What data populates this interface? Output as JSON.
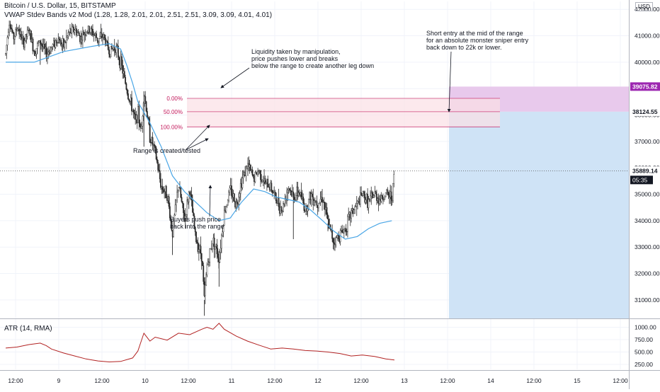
{
  "header": {
    "symbol": "Bitcoin / U.S. Dollar, 15, BITSTAMP",
    "indicator": "VWAP Stdev Bands v2 Mod (1.28, 1.28, 2.01, 2.01, 2.51, 2.51, 3.09, 3.09, 4.01, 4.01)",
    "atr": "ATR (14, RMA)",
    "currency": "USD"
  },
  "colors": {
    "candle": "#2b2b2b",
    "vwap": "#4aa6e6",
    "atr": "#b22222",
    "range_fill": "#fbe0e6",
    "range_line": "#c2185b",
    "short_risk_fill": "#e8c9ec",
    "short_reward_fill": "#cfe3f6",
    "last_price_tag": "#131722",
    "top_tag": "#9c27b0"
  },
  "chart_data": [
    {
      "type": "candlestick",
      "title": "Bitcoin / U.S. Dollar, 15, BITSTAMP",
      "ylim": [
        30300,
        42300
      ],
      "yticks": [
        31000,
        32000,
        33000,
        34000,
        35000,
        36000,
        37000,
        38000,
        39000,
        40000,
        41000,
        42000
      ],
      "ytick_labels": [
        "31000.00",
        "32000.00",
        "33000.00",
        "34000.00",
        "35000.00",
        "36000.00",
        "37000.00",
        "38000.00",
        "39000.00",
        "40000.00",
        "41000.00",
        "42000.00"
      ],
      "x_ticks": [
        "12:00",
        "9",
        "12:00",
        "10",
        "12:00",
        "11",
        "12:00",
        "12",
        "12:00",
        "13",
        "12:00",
        "14",
        "12:00",
        "15",
        "12:00"
      ],
      "price_path": [
        [
          0,
          40300
        ],
        [
          0.04,
          41600
        ],
        [
          0.09,
          40900
        ],
        [
          0.14,
          41350
        ],
        [
          0.2,
          40700
        ],
        [
          0.27,
          41200
        ],
        [
          0.33,
          40400
        ],
        [
          0.4,
          40800
        ],
        [
          0.47,
          40300
        ],
        [
          0.53,
          40550
        ],
        [
          0.6,
          40900
        ],
        [
          0.67,
          40600
        ],
        [
          0.73,
          41100
        ],
        [
          0.8,
          41250
        ],
        [
          0.87,
          40900
        ],
        [
          0.93,
          41200
        ],
        [
          1.0,
          41150
        ],
        [
          1.07,
          40850
        ],
        [
          1.13,
          41000
        ],
        [
          1.2,
          40400
        ],
        [
          1.27,
          40600
        ],
        [
          1.33,
          40000
        ],
        [
          1.37,
          39450
        ],
        [
          1.42,
          38700
        ],
        [
          1.47,
          38200
        ],
        [
          1.5,
          37700
        ],
        [
          1.53,
          38100
        ],
        [
          1.57,
          37300
        ],
        [
          1.6,
          38900
        ],
        [
          1.63,
          38200
        ],
        [
          1.67,
          37200
        ],
        [
          1.73,
          36600
        ],
        [
          1.8,
          35300
        ],
        [
          1.87,
          35000
        ],
        [
          1.93,
          33500
        ],
        [
          2.0,
          35400
        ],
        [
          2.07,
          34000
        ],
        [
          2.13,
          35200
        ],
        [
          2.2,
          33300
        ],
        [
          2.27,
          32700
        ],
        [
          2.3,
          31000
        ],
        [
          2.33,
          32300
        ],
        [
          2.4,
          33300
        ],
        [
          2.47,
          32600
        ],
        [
          2.53,
          34300
        ],
        [
          2.6,
          35200
        ],
        [
          2.67,
          34600
        ],
        [
          2.73,
          35500
        ],
        [
          2.8,
          36100
        ],
        [
          2.87,
          35600
        ],
        [
          2.93,
          35900
        ],
        [
          3.0,
          35400
        ],
        [
          3.07,
          35300
        ],
        [
          3.13,
          34800
        ],
        [
          3.2,
          34400
        ],
        [
          3.27,
          35300
        ],
        [
          3.33,
          34900
        ],
        [
          3.4,
          35100
        ],
        [
          3.47,
          34400
        ],
        [
          3.53,
          35000
        ],
        [
          3.6,
          34700
        ],
        [
          3.67,
          34900
        ],
        [
          3.73,
          33900
        ],
        [
          3.8,
          33200
        ],
        [
          3.87,
          33500
        ],
        [
          3.93,
          33700
        ],
        [
          4.0,
          34300
        ],
        [
          4.07,
          34600
        ],
        [
          4.13,
          35000
        ],
        [
          4.2,
          34700
        ],
        [
          4.27,
          35000
        ],
        [
          4.33,
          34800
        ],
        [
          4.4,
          35000
        ],
        [
          4.47,
          34900
        ],
        [
          4.5,
          35800
        ]
      ],
      "vwap_path": [
        [
          0,
          40000
        ],
        [
          0.33,
          40000
        ],
        [
          0.67,
          40400
        ],
        [
          1.0,
          40600
        ],
        [
          1.2,
          40700
        ],
        [
          1.33,
          40500
        ],
        [
          1.4,
          39900
        ],
        [
          1.47,
          39200
        ],
        [
          1.53,
          38500
        ],
        [
          1.67,
          37700
        ],
        [
          1.8,
          36800
        ],
        [
          1.93,
          35700
        ],
        [
          2.07,
          35100
        ],
        [
          2.2,
          34700
        ],
        [
          2.33,
          34300
        ],
        [
          2.47,
          34000
        ],
        [
          2.6,
          34100
        ],
        [
          2.73,
          34700
        ],
        [
          2.87,
          35200
        ],
        [
          3.0,
          35100
        ],
        [
          3.13,
          34900
        ],
        [
          3.27,
          34800
        ],
        [
          3.4,
          34700
        ],
        [
          3.53,
          34400
        ],
        [
          3.67,
          34000
        ],
        [
          3.8,
          33600
        ],
        [
          3.93,
          33300
        ],
        [
          4.07,
          33400
        ],
        [
          4.2,
          33700
        ],
        [
          4.33,
          33900
        ],
        [
          4.47,
          34000
        ]
      ],
      "range_fib": {
        "levels": [
          {
            "label": "0.00%",
            "price": 38630
          },
          {
            "label": "50.00%",
            "price": 38124.55
          },
          {
            "label": "100.00%",
            "price": 37550
          }
        ]
      },
      "short_position": {
        "stop": 39075.82,
        "entry": 38124.55,
        "target": 30300,
        "stop_label": "39075.82",
        "entry_label": "38124.55"
      },
      "last_price": {
        "value": 35889.14,
        "label": "35889.14",
        "countdown": "05:35"
      },
      "annotations": [
        {
          "id": "liquidity",
          "lines": [
            "Liquidity taken by manipulation,",
            "price pushes lower and breaks",
            "below the range to create another leg down"
          ]
        },
        {
          "id": "short-entry",
          "lines": [
            "Short entry at the mid of the range",
            "for an absolute monster sniper entry",
            "back down to 22k or lower."
          ]
        },
        {
          "id": "range-created",
          "lines": [
            "Range is created/tested"
          ]
        },
        {
          "id": "buyers-push",
          "lines": [
            "Buyers push price",
            "back into the range"
          ]
        }
      ]
    },
    {
      "type": "line",
      "title": "ATR (14, RMA)",
      "ylim": [
        150,
        1150
      ],
      "yticks": [
        250,
        500,
        750,
        1000
      ],
      "ytick_labels": [
        "250.00",
        "500.00",
        "750.00",
        "1000.00"
      ],
      "x": [
        0,
        0.13,
        0.27,
        0.4,
        0.47,
        0.53,
        0.67,
        0.8,
        0.93,
        1.07,
        1.2,
        1.33,
        1.47,
        1.53,
        1.6,
        1.67,
        1.73,
        1.87,
        2.0,
        2.13,
        2.27,
        2.33,
        2.4,
        2.47,
        2.53,
        2.67,
        2.8,
        2.93,
        3.07,
        3.2,
        3.33,
        3.47,
        3.6,
        3.73,
        3.87,
        4.0,
        4.13,
        4.27,
        4.4,
        4.5
      ],
      "y": [
        580,
        600,
        650,
        680,
        630,
        560,
        480,
        420,
        360,
        320,
        300,
        310,
        380,
        520,
        880,
        720,
        800,
        740,
        880,
        850,
        960,
        1000,
        960,
        1080,
        960,
        820,
        720,
        640,
        560,
        580,
        560,
        530,
        520,
        500,
        470,
        420,
        440,
        410,
        360,
        340
      ]
    }
  ]
}
